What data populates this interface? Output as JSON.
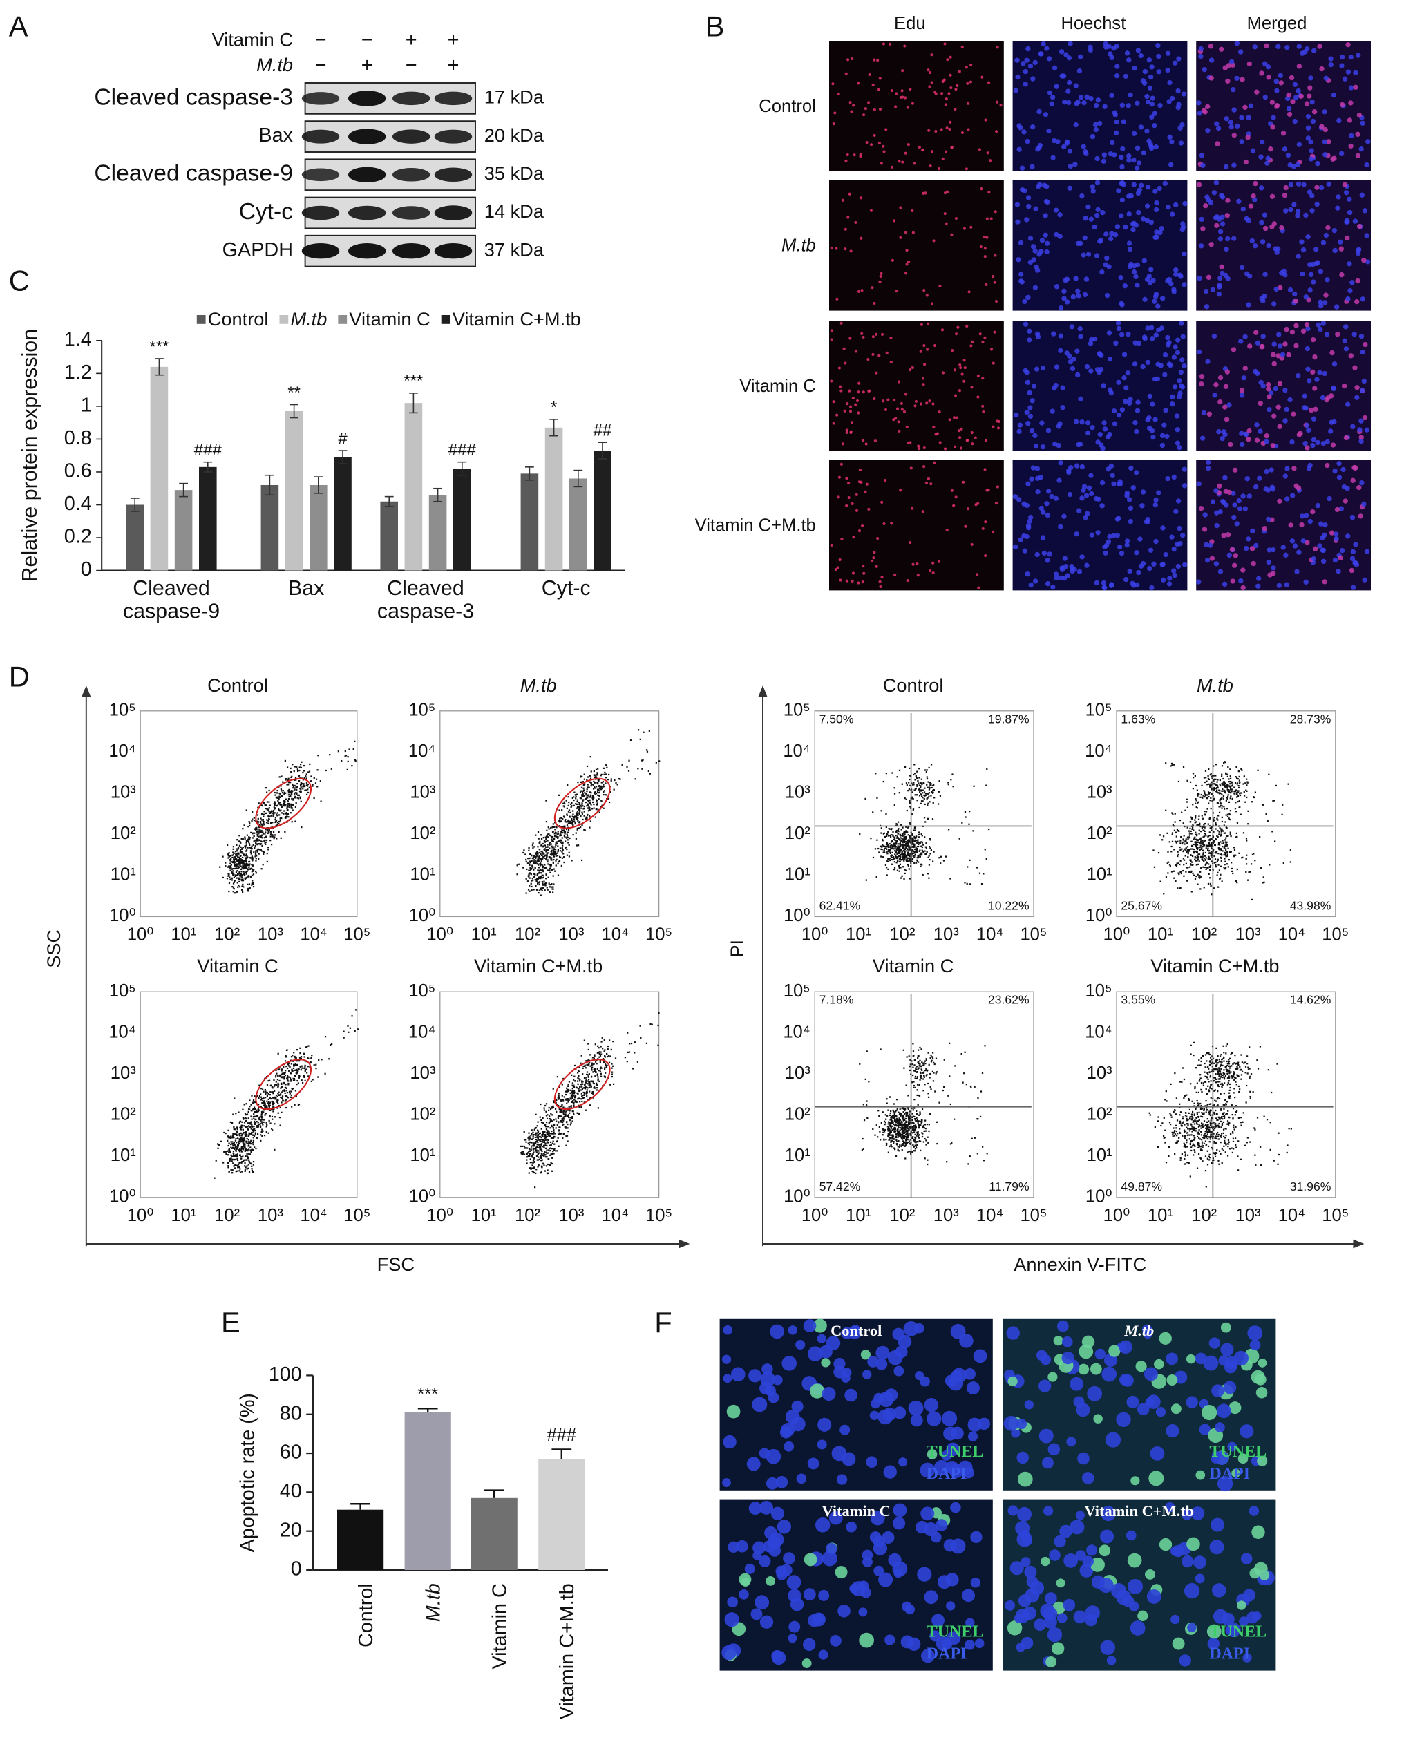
{
  "panel_labels": [
    "A",
    "B",
    "C",
    "D",
    "E",
    "F"
  ],
  "blot": {
    "conditions": [
      {
        "name": "Vitamin C",
        "signs": [
          "−",
          "−",
          "+",
          "+"
        ]
      },
      {
        "name": "M.tb",
        "signs": [
          "−",
          "+",
          "−",
          "+"
        ]
      }
    ],
    "rows": [
      {
        "label": "Cleaved caspase-3",
        "size": "17 kDa"
      },
      {
        "label": "Bax",
        "size": "20 kDa"
      },
      {
        "label": "Cleaved caspase-9",
        "size": "35 kDa"
      },
      {
        "label": "Cyt-c",
        "size": "14 kDa"
      },
      {
        "label": "GAPDH",
        "size": "37 kDa"
      }
    ]
  },
  "microscopy": {
    "columns": [
      "Edu",
      "Hoechst",
      "Merged"
    ],
    "rows": [
      "Control",
      "M.tb",
      "Vitamin C",
      "Vitamin C+M.tb"
    ]
  },
  "flow": {
    "tick_labels": [
      "10⁰",
      "10¹",
      "10²",
      "10³",
      "10⁴",
      "10⁵"
    ],
    "left": {
      "y_label": "SSC",
      "x_label": "FSC",
      "plots": [
        "Control",
        "M.tb",
        "Vitamin C",
        "Vitamin C+M.tb"
      ]
    },
    "right": {
      "y_label": "PI",
      "x_label": "Annexin V-FITC",
      "plots": [
        {
          "title": "Control",
          "quadrants": [
            "7.50%",
            "19.87%",
            "62.41%",
            "10.22%"
          ]
        },
        {
          "title": "M.tb",
          "quadrants": [
            "1.63%",
            "28.73%",
            "25.67%",
            "43.98%"
          ]
        },
        {
          "title": "Vitamin C",
          "quadrants": [
            "7.18%",
            "23.62%",
            "57.42%",
            "11.79%"
          ]
        },
        {
          "title": "Vitamin C+M.tb",
          "quadrants": [
            "3.55%",
            "14.62%",
            "49.87%",
            "31.96%"
          ]
        }
      ]
    }
  },
  "tunel": {
    "panels": [
      "Control",
      "M.tb",
      "Vitamin C",
      "Vitamin C+M.tb"
    ],
    "stains": [
      "TUNEL",
      "DAPI"
    ]
  },
  "chart_data": [
    {
      "type": "bar",
      "y_label": "Relative protein expression",
      "categories": [
        [
          "Cleaved",
          "caspase-9"
        ],
        [
          "Bax"
        ],
        [
          "Cleaved",
          "caspase-3"
        ],
        [
          "Cyt-c"
        ]
      ],
      "ylim": [
        0,
        1.4
      ],
      "yticks": [
        0,
        0.2,
        0.4,
        0.6,
        0.8,
        1,
        1.2,
        1.4
      ],
      "series": [
        {
          "name": "Control",
          "color": "#5a5a5a",
          "values": [
            0.4,
            0.52,
            0.42,
            0.59
          ],
          "errors": [
            0.04,
            0.06,
            0.03,
            0.04
          ]
        },
        {
          "name": "M.tb",
          "color": "#c2c2c2",
          "values": [
            1.24,
            0.97,
            1.02,
            0.87
          ],
          "errors": [
            0.05,
            0.04,
            0.06,
            0.05
          ],
          "significance": [
            "***",
            "**",
            "***",
            "*"
          ]
        },
        {
          "name": "Vitamin C",
          "color": "#8e8e8e",
          "values": [
            0.49,
            0.52,
            0.46,
            0.56
          ],
          "errors": [
            0.04,
            0.05,
            0.04,
            0.05
          ]
        },
        {
          "name": "Vitamin C+M.tb",
          "color": "#1f1f1f",
          "values": [
            0.63,
            0.69,
            0.62,
            0.73
          ],
          "errors": [
            0.03,
            0.04,
            0.04,
            0.05
          ],
          "significance": [
            "###",
            "#",
            "###",
            "##"
          ]
        }
      ]
    },
    {
      "type": "bar",
      "y_label": "Apoptotic rate (%)",
      "categories": [
        "Control",
        "M.tb",
        "Vitamin C",
        "Vitamin C+M.tb"
      ],
      "values": [
        31,
        81,
        37,
        57
      ],
      "errors": [
        3,
        2,
        4,
        5
      ],
      "significance": [
        null,
        "***",
        null,
        "###"
      ],
      "colors": [
        "#111111",
        "#9d9dab",
        "#707070",
        "#d2d2d2"
      ],
      "ylim": [
        0,
        100
      ],
      "yticks": [
        0,
        20,
        40,
        60,
        80,
        100
      ]
    }
  ]
}
